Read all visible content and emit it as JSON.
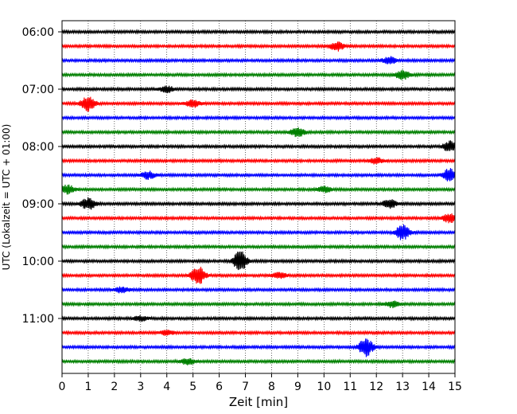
{
  "chart_data": {
    "type": "line",
    "title": "",
    "xlabel": "Zeit  [min]",
    "ylabel": "UTC (Lokalzeit = UTC + 01:00)",
    "xlim": [
      0,
      15
    ],
    "x_ticks": [
      0,
      1,
      2,
      3,
      4,
      5,
      6,
      7,
      8,
      9,
      10,
      11,
      12,
      13,
      14,
      15
    ],
    "y_tick_labels": [
      "06:00",
      "07:00",
      "08:00",
      "09:00",
      "10:00",
      "11:00"
    ],
    "grid": "vertical dotted",
    "trace_colors": [
      "#000000",
      "#ff0000",
      "#0000ff",
      "#008000"
    ],
    "traces": [
      {
        "start": "06:00",
        "events": []
      },
      {
        "start": "06:15",
        "events": [
          {
            "t": 10.5,
            "amp": 0.6
          }
        ]
      },
      {
        "start": "06:30",
        "events": [
          {
            "t": 12.5,
            "amp": 0.5
          }
        ]
      },
      {
        "start": "06:45",
        "events": [
          {
            "t": 13.0,
            "amp": 0.6
          }
        ]
      },
      {
        "start": "07:00",
        "events": [
          {
            "t": 4.0,
            "amp": 0.4
          }
        ]
      },
      {
        "start": "07:15",
        "events": [
          {
            "t": 1.0,
            "amp": 1.0
          },
          {
            "t": 5.0,
            "amp": 0.5
          }
        ]
      },
      {
        "start": "07:30",
        "events": []
      },
      {
        "start": "07:45",
        "events": [
          {
            "t": 9.0,
            "amp": 0.6
          }
        ]
      },
      {
        "start": "08:00",
        "events": [
          {
            "t": 14.8,
            "amp": 0.7
          }
        ]
      },
      {
        "start": "08:15",
        "events": [
          {
            "t": 12.0,
            "amp": 0.4
          }
        ]
      },
      {
        "start": "08:30",
        "events": [
          {
            "t": 3.3,
            "amp": 0.5
          },
          {
            "t": 14.8,
            "amp": 0.9
          }
        ]
      },
      {
        "start": "08:45",
        "events": [
          {
            "t": 0.2,
            "amp": 0.6
          },
          {
            "t": 10.0,
            "amp": 0.4
          }
        ]
      },
      {
        "start": "09:00",
        "events": [
          {
            "t": 1.0,
            "amp": 0.8
          },
          {
            "t": 12.5,
            "amp": 0.6
          }
        ]
      },
      {
        "start": "09:15",
        "events": [
          {
            "t": 14.8,
            "amp": 0.6
          }
        ]
      },
      {
        "start": "09:30",
        "events": [
          {
            "t": 13.0,
            "amp": 1.0
          }
        ]
      },
      {
        "start": "09:45",
        "events": []
      },
      {
        "start": "10:00",
        "events": [
          {
            "t": 6.8,
            "amp": 1.4
          }
        ]
      },
      {
        "start": "10:15",
        "events": [
          {
            "t": 5.2,
            "amp": 1.2
          },
          {
            "t": 8.3,
            "amp": 0.4
          }
        ]
      },
      {
        "start": "10:30",
        "events": [
          {
            "t": 2.3,
            "amp": 0.4
          }
        ]
      },
      {
        "start": "10:45",
        "events": [
          {
            "t": 12.6,
            "amp": 0.4
          }
        ]
      },
      {
        "start": "11:00",
        "events": [
          {
            "t": 3.0,
            "amp": 0.3
          }
        ]
      },
      {
        "start": "11:15",
        "events": [
          {
            "t": 4.0,
            "amp": 0.3
          }
        ]
      },
      {
        "start": "11:30",
        "events": [
          {
            "t": 11.6,
            "amp": 1.3
          }
        ]
      },
      {
        "start": "11:45",
        "events": [
          {
            "t": 4.8,
            "amp": 0.4
          }
        ]
      }
    ]
  }
}
